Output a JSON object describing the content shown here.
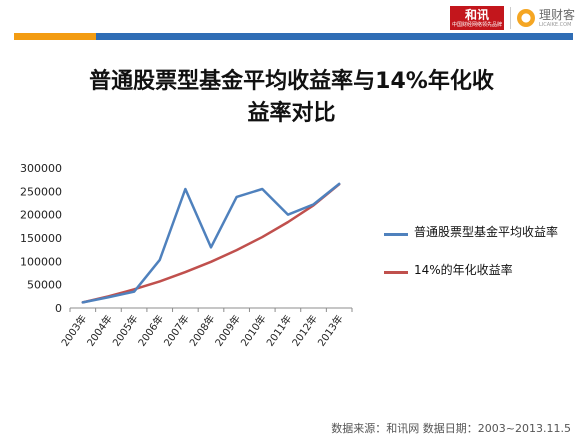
{
  "branding": {
    "hexun_logo_text": "和讯",
    "hexun_logo_subtext": "中国财经网络领先品牌",
    "licaike_logo_text": "理财客",
    "licaike_logo_subtext": "LICAIKE.COM"
  },
  "colors": {
    "accent_orange": "#f39c12",
    "accent_blue": "#2f6db5",
    "series_fund": "#4f81bd",
    "series_14pct": "#c0504d"
  },
  "title": "普通股票型基金平均收益率与14%年化收益率对比",
  "title_lines": [
    "普通股票型基金平均收益率与14%年化收",
    "益率对比"
  ],
  "source_note": "数据来源：和讯网 数据日期：2003~2013.11.5",
  "chart_data": {
    "type": "line",
    "title": "普通股票型基金平均收益率与14%年化收益率对比",
    "categories": [
      "2003年",
      "2004年",
      "2005年",
      "2006年",
      "2007年",
      "2008年",
      "2009年",
      "2010年",
      "2011年",
      "2012年",
      "2013年"
    ],
    "series": [
      {
        "name": "普通股票型基金平均收益率",
        "color": "#4f81bd",
        "values": [
          12000,
          23000,
          35000,
          103000,
          255000,
          130000,
          238000,
          255000,
          200000,
          222000,
          266000
        ]
      },
      {
        "name": "14%的年化收益率",
        "color": "#c0504d",
        "values": [
          12000,
          25000,
          40000,
          57000,
          77000,
          99000,
          124000,
          152000,
          184000,
          220000,
          265000
        ]
      }
    ],
    "ylim": [
      0,
      300000
    ],
    "yticks": [
      "0",
      "50000",
      "100000",
      "150000",
      "200000",
      "250000",
      "300000"
    ],
    "grid": false,
    "legend_position": "right"
  }
}
